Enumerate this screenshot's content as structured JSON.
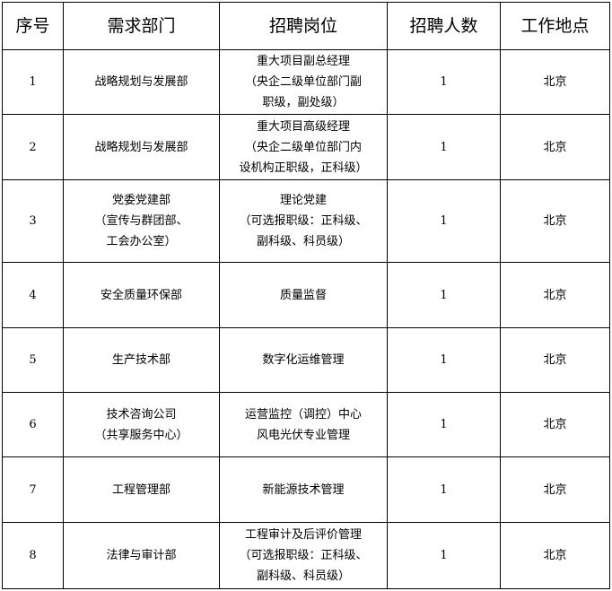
{
  "headers": [
    "序号",
    "需求部门",
    "招聘岗位",
    "招聘人数",
    "工作地点"
  ],
  "rows": [
    {
      "no": "1",
      "dept": [
        "战略规划与发展部"
      ],
      "post": [
        "重大项目副总经理",
        "（央企二级单位部门副",
        "职级，副处级）"
      ],
      "count": "1",
      "loc": "北京"
    },
    {
      "no": "2",
      "dept": [
        "战略规划与发展部"
      ],
      "post": [
        "重大项目高级经理",
        "（央企二级单位部门内",
        "设机构正职级，正科级）"
      ],
      "count": "1",
      "loc": "北京"
    },
    {
      "no": "3",
      "dept": [
        "党委党建部",
        "（宣传与群团部、",
        "工会办公室）"
      ],
      "post": [
        "理论党建",
        "（可选报职级：正科级、",
        "副科级、科员级）"
      ],
      "count": "1",
      "loc": "北京"
    },
    {
      "no": "4",
      "dept": [
        "安全质量环保部"
      ],
      "post": [
        "质量监督"
      ],
      "count": "1",
      "loc": "北京"
    },
    {
      "no": "5",
      "dept": [
        "生产技术部"
      ],
      "post": [
        "数字化运维管理"
      ],
      "count": "1",
      "loc": "北京"
    },
    {
      "no": "6",
      "dept": [
        "技术咨询公司",
        "（共享服务中心）"
      ],
      "post": [
        "运营监控（调控）中心",
        "风电光伏专业管理"
      ],
      "count": "1",
      "loc": "北京"
    },
    {
      "no": "7",
      "dept": [
        "工程管理部"
      ],
      "post": [
        "新能源技术管理"
      ],
      "count": "1",
      "loc": "北京"
    },
    {
      "no": "8",
      "dept": [
        "法律与审计部"
      ],
      "post": [
        "工程审计及后评价管理",
        "（可选报职级：正科级、",
        "副科级、科员级）"
      ],
      "count": "1",
      "loc": "北京"
    }
  ]
}
